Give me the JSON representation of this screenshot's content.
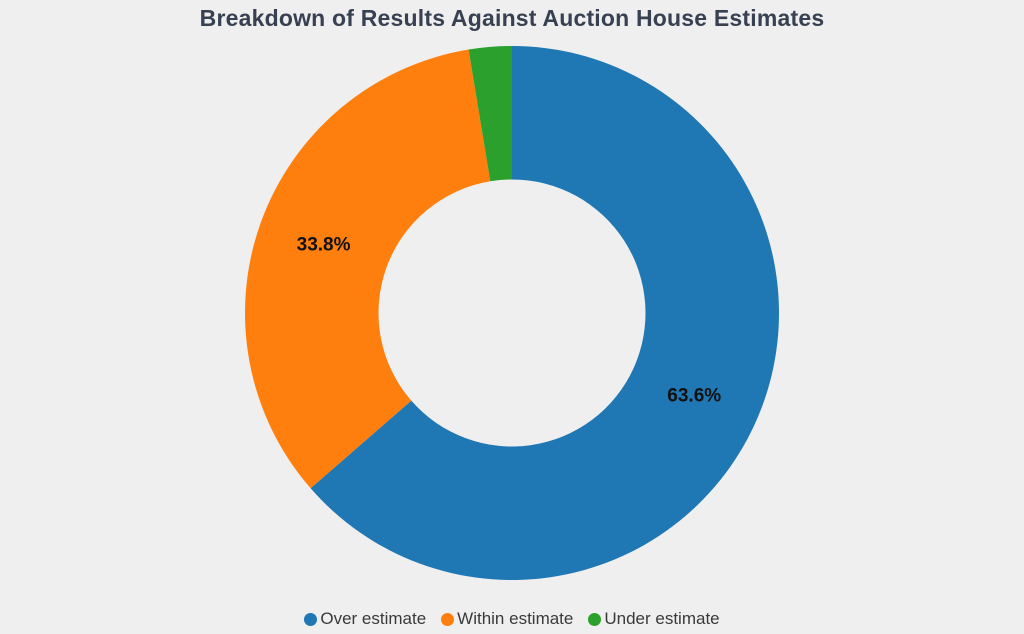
{
  "page": {
    "background": "#efefef"
  },
  "chart_data": {
    "type": "pie",
    "subtype": "donut",
    "title": "Breakdown of Results Against Auction House Estimates",
    "categories": [
      "Over estimate",
      "Within estimate",
      "Under estimate"
    ],
    "values": [
      63.6,
      33.8,
      2.6
    ],
    "displayed_labels": [
      "63.6%",
      "33.8%",
      ""
    ],
    "colors": [
      "#1f77b4",
      "#ff7f0e",
      "#2ca02c"
    ],
    "legend_position": "bottom",
    "start_angle_deg": 0,
    "direction": "clockwise",
    "inner_radius_ratio": 0.5,
    "title_color": "#374151",
    "label_color": "#111111",
    "legend_text_color": "#3a3a3a"
  }
}
